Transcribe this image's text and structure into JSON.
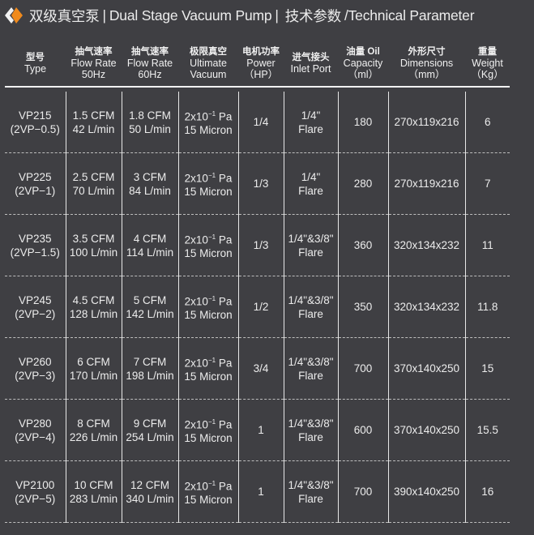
{
  "title": {
    "cn": "双级真空泵",
    "en": "Dual Stage Vacuum Pump",
    "sep": "|",
    "param_cn": "技术参数",
    "param_en": "/Technical Parameter",
    "accent": "#f08a1c"
  },
  "headers": [
    {
      "cn": "型号",
      "en": [
        "Type"
      ]
    },
    {
      "cn": "抽气速率",
      "en": [
        "Flow Rate",
        "50Hz"
      ]
    },
    {
      "cn": "抽气速率",
      "en": [
        "Flow Rate",
        "60Hz"
      ]
    },
    {
      "cn": "极限真空",
      "en": [
        "Ultimate",
        "Vacuum"
      ]
    },
    {
      "cn": "电机功率",
      "en": [
        "Power",
        "（HP）"
      ]
    },
    {
      "cn": "进气接头",
      "en": [
        "Inlet Port"
      ]
    },
    {
      "cn": "油量 Oil",
      "en": [
        "Capacity",
        "（ml）"
      ]
    },
    {
      "cn": "外形尺寸",
      "en": [
        "Dimensions",
        "（mm）"
      ]
    },
    {
      "cn": "重量",
      "en": [
        "Weight",
        "（Kg）"
      ]
    }
  ],
  "rows": [
    {
      "model": "VP215",
      "alias": "(2VP−0.5)",
      "f50": "1.5 CFM",
      "l50": "42 L/min",
      "f60": "1.8 CFM",
      "l60": "50 L/min",
      "vac": "2x10",
      "exp": "−1",
      "unit": " Pa",
      "micron": "15 Micron",
      "hp": "1/4",
      "port": "1/4\"",
      "flare": "Flare",
      "oil": "180",
      "dim": "270x119x216",
      "kg": "6"
    },
    {
      "model": "VP225",
      "alias": "(2VP−1)",
      "f50": "2.5 CFM",
      "l50": "70 L/min",
      "f60": "3 CFM",
      "l60": "84 L/min",
      "vac": "2x10",
      "exp": "−1",
      "unit": " Pa",
      "micron": "15 Micron",
      "hp": "1/3",
      "port": "1/4\"",
      "flare": "Flare",
      "oil": "280",
      "dim": "270x119x216",
      "kg": "7"
    },
    {
      "model": "VP235",
      "alias": "(2VP−1.5)",
      "f50": "3.5 CFM",
      "l50": "100 L/min",
      "f60": "4 CFM",
      "l60": "114 L/min",
      "vac": "2x10",
      "exp": "−1",
      "unit": " Pa",
      "micron": "15 Micron",
      "hp": "1/3",
      "port": "1/4\"&3/8\"",
      "flare": "Flare",
      "oil": "360",
      "dim": "320x134x232",
      "kg": "11"
    },
    {
      "model": "VP245",
      "alias": "(2VP−2)",
      "f50": "4.5 CFM",
      "l50": "128 L/min",
      "f60": "5 CFM",
      "l60": "142 L/min",
      "vac": "2x10",
      "exp": "−1",
      "unit": " Pa",
      "micron": "15 Micron",
      "hp": "1/2",
      "port": "1/4\"&3/8\"",
      "flare": "Flare",
      "oil": "350",
      "dim": "320x134x232",
      "kg": "11.8"
    },
    {
      "model": "VP260",
      "alias": "(2VP−3)",
      "f50": "6 CFM",
      "l50": "170 L/min",
      "f60": "7 CFM",
      "l60": "198 L/min",
      "vac": "2x10",
      "exp": "−1",
      "unit": " Pa",
      "micron": "15 Micron",
      "hp": "3/4",
      "port": "1/4\"&3/8\"",
      "flare": "Flare",
      "oil": "700",
      "dim": "370x140x250",
      "kg": "15"
    },
    {
      "model": "VP280",
      "alias": "(2VP−4)",
      "f50": "8 CFM",
      "l50": "226 L/min",
      "f60": "9 CFM",
      "l60": "254 L/min",
      "vac": "2x10",
      "exp": "−1",
      "unit": " Pa",
      "micron": "15 Micron",
      "hp": "1",
      "port": "1/4\"&3/8\"",
      "flare": "Flare",
      "oil": "600",
      "dim": "370x140x250",
      "kg": "15.5"
    },
    {
      "model": "VP2100",
      "alias": "(2VP−5)",
      "f50": "10 CFM",
      "l50": "283 L/min",
      "f60": "12 CFM",
      "l60": "340 L/min",
      "vac": "2x10",
      "exp": "−1",
      "unit": " Pa",
      "micron": "15 Micron",
      "hp": "1",
      "port": "1/4\"&3/8\"",
      "flare": "Flare",
      "oil": "700",
      "dim": "390x140x250",
      "kg": "16"
    }
  ]
}
